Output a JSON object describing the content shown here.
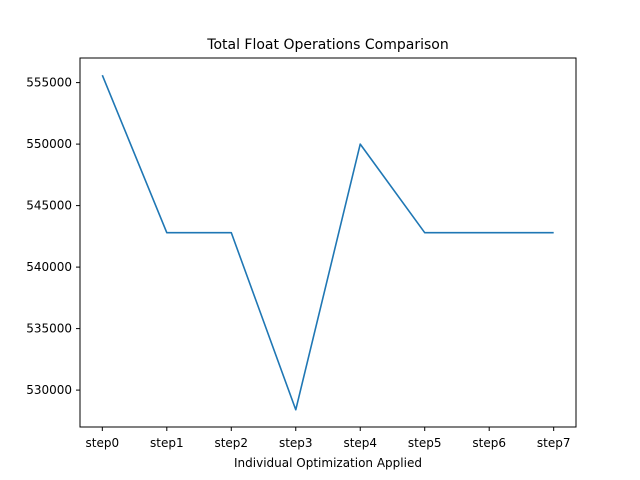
{
  "chart_data": {
    "type": "line",
    "title": "Total Float Operations Comparison",
    "xlabel": "Individual Optimization Applied",
    "ylabel": "",
    "categories": [
      "step0",
      "step1",
      "step2",
      "step3",
      "step4",
      "step5",
      "step6",
      "step7"
    ],
    "series": [
      {
        "values": [
          555600,
          542800,
          542800,
          528400,
          550000,
          542800,
          542800,
          542800
        ],
        "color": "#1f77b4"
      }
    ],
    "yticks": [
      530000,
      535000,
      540000,
      545000,
      550000,
      555000
    ],
    "ytick_labels": [
      "530000",
      "535000",
      "540000",
      "545000",
      "550000",
      "555000"
    ],
    "ylim": [
      527000,
      557000
    ],
    "grid": false,
    "legend": "none"
  }
}
